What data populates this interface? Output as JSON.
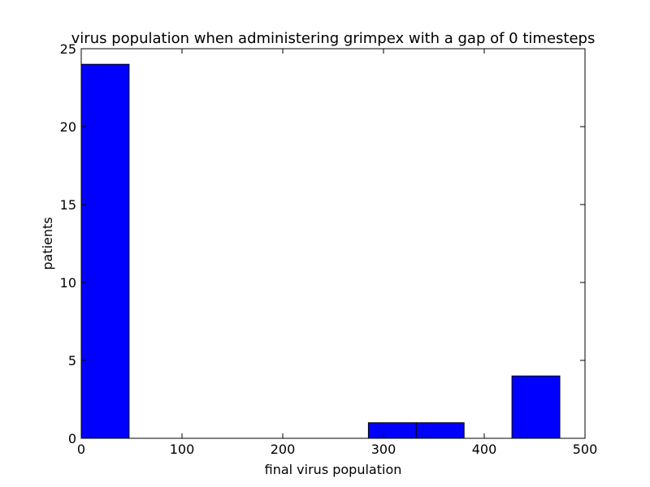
{
  "chart_data": {
    "type": "bar",
    "title": "virus population when administering grimpex with a gap of 0 timesteps",
    "xlabel": "final virus population",
    "ylabel": "patients",
    "xlim": [
      0,
      500
    ],
    "ylim": [
      0,
      25
    ],
    "xticks": [
      0,
      100,
      200,
      300,
      400,
      500
    ],
    "yticks": [
      0,
      5,
      10,
      15,
      20,
      25
    ],
    "grid": false,
    "bar_color": "#0000ff",
    "bins": [
      {
        "start": 0,
        "end": 47.5,
        "value": 24
      },
      {
        "start": 285,
        "end": 332.5,
        "value": 1
      },
      {
        "start": 332.5,
        "end": 380,
        "value": 1
      },
      {
        "start": 427.5,
        "end": 475,
        "value": 4
      }
    ]
  }
}
